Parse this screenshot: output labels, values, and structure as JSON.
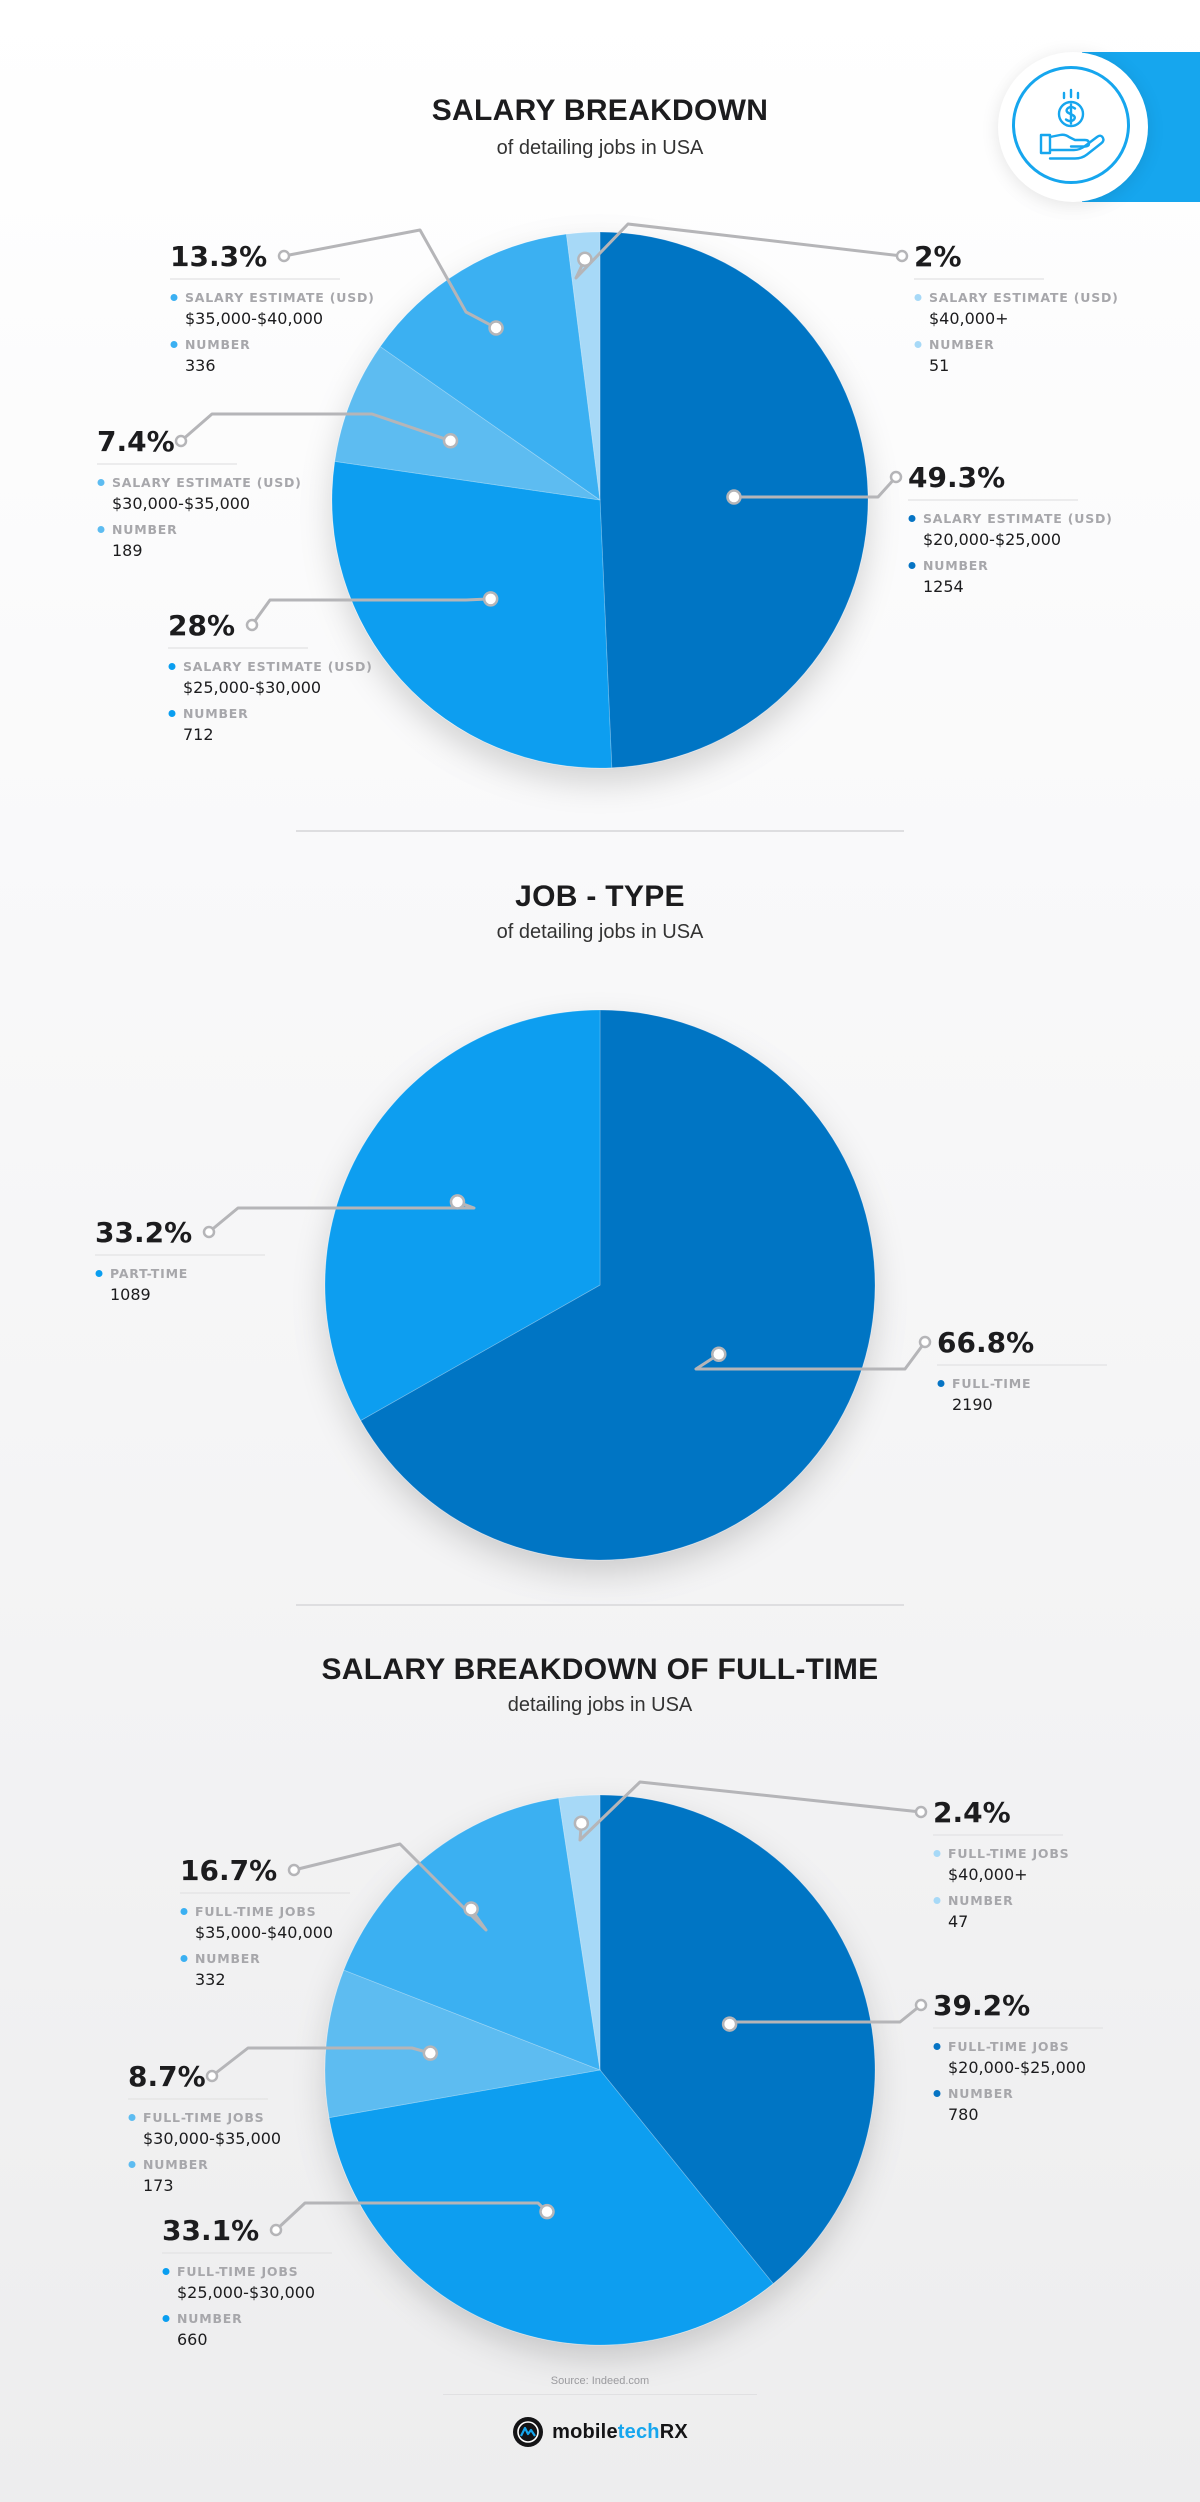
{
  "chart_data": [
    {
      "type": "pie",
      "title": "SALARY BREAKDOWN",
      "subtitle": "of detailing jobs in USA",
      "slices": [
        {
          "percent_label": "49.3%",
          "value": 49.3,
          "category_label": "SALARY ESTIMATE (USD)",
          "category": "$20,000-$25,000",
          "count_label": "NUMBER",
          "count": "1254",
          "color": "#0674c4"
        },
        {
          "percent_label": "28%",
          "value": 28,
          "category_label": "SALARY ESTIMATE (USD)",
          "category": "$25,000-$30,000",
          "count_label": "NUMBER",
          "count": "712",
          "color": "#0a9ef0"
        },
        {
          "percent_label": "7.4%",
          "value": 7.4,
          "category_label": "SALARY ESTIMATE (USD)",
          "category": "$30,000-$35,000",
          "count_label": "NUMBER",
          "count": "189",
          "color": "#5dbcf1"
        },
        {
          "percent_label": "13.3%",
          "value": 13.3,
          "category_label": "SALARY ESTIMATE (USD)",
          "category": "$35,000-$40,000",
          "count_label": "NUMBER",
          "count": "336",
          "color": "#3bb0f2"
        },
        {
          "percent_label": "2%",
          "value": 2,
          "category_label": "SALARY ESTIMATE (USD)",
          "category": "$40,000+",
          "count_label": "NUMBER",
          "count": "51",
          "color": "#a7d9f7"
        }
      ]
    },
    {
      "type": "pie",
      "title": "JOB - TYPE",
      "subtitle": "of detailing jobs in USA",
      "slices": [
        {
          "percent_label": "66.8%",
          "value": 66.8,
          "category_label": "FULL-TIME",
          "count": "2190",
          "color": "#0674c4"
        },
        {
          "percent_label": "33.2%",
          "value": 33.2,
          "category_label": "PART-TIME",
          "count": "1089",
          "color": "#0a9ef0"
        }
      ]
    },
    {
      "type": "pie",
      "title": "SALARY BREAKDOWN OF FULL-TIME",
      "subtitle": "detailing jobs in USA",
      "slices": [
        {
          "percent_label": "39.2%",
          "value": 39.2,
          "category_label": "FULL-TIME JOBS",
          "category": "$20,000-$25,000",
          "count_label": "NUMBER",
          "count": "780",
          "color": "#0674c4"
        },
        {
          "percent_label": "33.1%",
          "value": 33.1,
          "category_label": "FULL-TIME JOBS",
          "category": "$25,000-$30,000",
          "count_label": "NUMBER",
          "count": "660",
          "color": "#0a9ef0"
        },
        {
          "percent_label": "8.7%",
          "value": 8.7,
          "category_label": "FULL-TIME JOBS",
          "category": "$30,000-$35,000",
          "count_label": "NUMBER",
          "count": "173",
          "color": "#5dbcf1"
        },
        {
          "percent_label": "16.7%",
          "value": 16.7,
          "category_label": "FULL-TIME JOBS",
          "category": "$35,000-$40,000",
          "count_label": "NUMBER",
          "count": "332",
          "color": "#3bb0f2"
        },
        {
          "percent_label": "2.4%",
          "value": 2.4,
          "category_label": "FULL-TIME JOBS",
          "category": "$40,000+",
          "count_label": "NUMBER",
          "count": "47",
          "color": "#a7d9f7"
        }
      ]
    }
  ],
  "footer": {
    "source": "Source: Indeed.com",
    "brand_part1": "mobile",
    "brand_part2": "tech",
    "brand_part3": "RX"
  },
  "colors": {
    "accent": "#16a6ee",
    "dark_blue": "#0674c4",
    "connector": "#b5b5b8"
  },
  "icons": {
    "corner_badge": "dollar-coin-hand-icon",
    "logo": "brand-logo-icon"
  }
}
